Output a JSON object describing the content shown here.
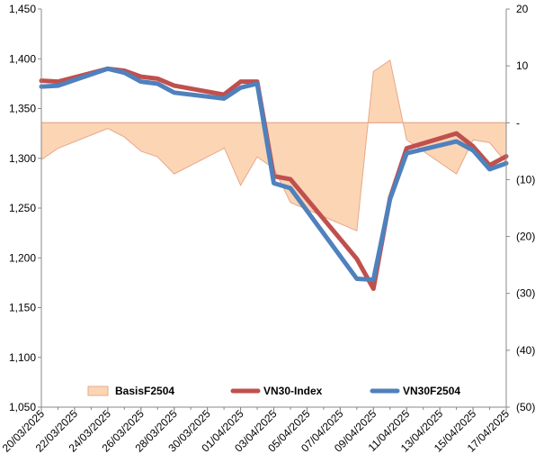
{
  "chart_data": {
    "type": "line",
    "x": [
      "20/03/2025",
      "21/03/2025",
      "24/03/2025",
      "25/03/2025",
      "26/03/2025",
      "27/03/2025",
      "28/03/2025",
      "31/03/2025",
      "01/04/2025",
      "02/04/2025",
      "03/04/2025",
      "04/04/2025",
      "08/04/2025",
      "09/04/2025",
      "10/04/2025",
      "11/04/2025",
      "14/04/2025",
      "15/04/2025",
      "16/04/2025",
      "17/04/2025"
    ],
    "x_tick_labels": [
      "20/03/2025",
      "22/03/2025",
      "24/03/2025",
      "26/03/2025",
      "28/03/2025",
      "30/03/2025",
      "01/04/2025",
      "03/04/2025",
      "05/04/2025",
      "07/04/2025",
      "09/04/2025",
      "11/04/2025",
      "13/04/2025",
      "15/04/2025",
      "17/04/2025"
    ],
    "x_range": [
      "20/03/2025",
      "17/04/2025"
    ],
    "y_left": {
      "range": [
        1050,
        1450
      ],
      "ticks": [
        "1,050",
        "1,100",
        "1,150",
        "1,200",
        "1,250",
        "1,300",
        "1,350",
        "1,400",
        "1,450"
      ]
    },
    "y_right": {
      "range": [
        -50,
        20
      ],
      "ticks": [
        "(50)",
        "(40)",
        "(30)",
        "(20)",
        "(10)",
        "-",
        "10",
        "20"
      ]
    },
    "series": [
      {
        "name": "BasisF2504",
        "type": "area",
        "axis": "right",
        "color": "#FCD5B5",
        "edge_color": "#E6A98A",
        "x": [
          "20/03/2025",
          "21/03/2025",
          "24/03/2025",
          "25/03/2025",
          "26/03/2025",
          "27/03/2025",
          "28/03/2025",
          "31/03/2025",
          "31/03/2025",
          "01/04/2025",
          "02/04/2025",
          "03/04/2025",
          "04/04/2025",
          "08/04/2025",
          "09/04/2025",
          "10/04/2025",
          "11/04/2025",
          "14/04/2025",
          "15/04/2025",
          "16/04/2025",
          "17/04/2025"
        ],
        "values": [
          -6.5,
          -4.5,
          -1,
          -2.5,
          -5,
          -6,
          -9,
          -4.5,
          -4.3,
          -11,
          -6,
          -8,
          -14,
          -19,
          9,
          11,
          -3,
          -9,
          -3,
          -3.5,
          -7
        ]
      },
      {
        "name": "VN30-Index",
        "type": "line",
        "axis": "left",
        "color": "#C0504D",
        "values": [
          1378,
          1377,
          1390,
          1388,
          1382,
          1380,
          1373,
          1364,
          1377,
          1377,
          1282,
          1279,
          1199,
          1169,
          1260,
          1310,
          1325,
          1312,
          1293,
          1302
        ]
      },
      {
        "name": "VN30F2504",
        "type": "line",
        "axis": "left",
        "color": "#4F81BD",
        "values": [
          1372,
          1373,
          1390,
          1386,
          1377,
          1375,
          1366,
          1360,
          1371,
          1375,
          1275,
          1270,
          1179,
          1178,
          1259,
          1305,
          1317,
          1308,
          1289,
          1295
        ]
      }
    ],
    "legend": {
      "position": "bottom-inside",
      "entries": [
        "BasisF2504",
        "VN30-Index",
        "VN30F2504"
      ]
    },
    "grid": false,
    "background": "#ffffff"
  }
}
